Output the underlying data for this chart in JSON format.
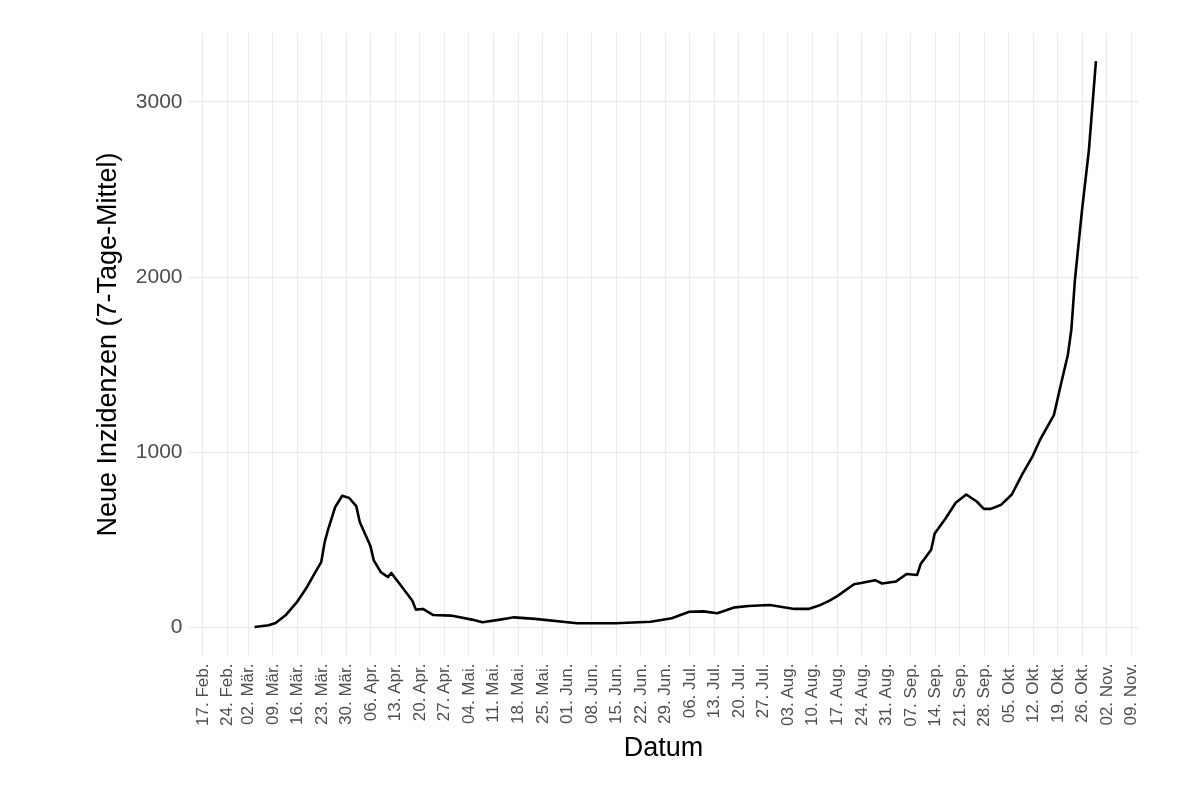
{
  "chart_data": {
    "type": "line",
    "xlabel": "Datum",
    "ylabel": "Neue Inzidenzen (7-Tage-Mittel)",
    "x": [
      "--03-04",
      "--03-08",
      "--03-10",
      "--03-13",
      "--03-16",
      "--03-19",
      "--03-21",
      "--03-23",
      "--03-24",
      "--03-25",
      "--03-27",
      "--03-29",
      "--03-31",
      "--04-02",
      "--04-03",
      "--04-06",
      "--04-07",
      "--04-09",
      "--04-11",
      "--04-12",
      "--04-15",
      "--04-18",
      "--04-19",
      "--04-21",
      "--04-24",
      "--04-29",
      "--05-05",
      "--05-08",
      "--05-13",
      "--05-17",
      "--05-23",
      "--06-04",
      "--06-15",
      "--06-25",
      "--07-01",
      "--07-06",
      "--07-10",
      "--07-14",
      "--07-19",
      "--07-23",
      "--07-29",
      "--08-05",
      "--08-09",
      "--08-12",
      "--08-15",
      "--08-17",
      "--08-22",
      "--08-24",
      "--08-28",
      "--08-30",
      "--09-03",
      "--09-06",
      "--09-09",
      "--09-10",
      "--09-13",
      "--09-14",
      "--09-17",
      "--09-20",
      "--09-23",
      "--09-26",
      "--09-28",
      "--09-30",
      "--10-03",
      "--10-06",
      "--10-09",
      "--10-12",
      "--10-14",
      "--10-18",
      "--10-20",
      "--10-22",
      "--10-23",
      "--10-24",
      "--10-26",
      "--10-28",
      "--10-30"
    ],
    "series": [
      {
        "color": "#000000",
        "values": [
          0,
          10,
          23,
          70,
          140,
          230,
          302,
          370,
          485,
          559,
          685,
          749,
          736,
          690,
          599,
          464,
          380,
          313,
          285,
          308,
          230,
          150,
          99,
          103,
          68,
          65,
          42,
          27,
          42,
          55,
          46,
          21,
          21,
          30,
          50,
          87,
          89,
          78,
          112,
          120,
          125,
          103,
          103,
          122,
          150,
          173,
          244,
          251,
          267,
          248,
          260,
          302,
          297,
          359,
          441,
          534,
          616,
          709,
          756,
          716,
          674,
          674,
          698,
          756,
          872,
          977,
          1066,
          1209,
          1384,
          1554,
          1699,
          1979,
          2374,
          2723,
          3230
        ]
      }
    ],
    "xlim": [
      "--02-13",
      "--11-11"
    ],
    "ylim": [
      -160,
      3390
    ],
    "yticks": [
      0,
      1000,
      2000,
      3000
    ],
    "xticks": [
      {
        "value": "--02-17",
        "label": "17. Feb."
      },
      {
        "value": "--02-24",
        "label": "24. Feb."
      },
      {
        "value": "--03-02",
        "label": "02. Mär."
      },
      {
        "value": "--03-09",
        "label": "09. Mär."
      },
      {
        "value": "--03-16",
        "label": "16. Mär."
      },
      {
        "value": "--03-23",
        "label": "23. Mär."
      },
      {
        "value": "--03-30",
        "label": "30. Mär."
      },
      {
        "value": "--04-06",
        "label": "06. Apr."
      },
      {
        "value": "--04-13",
        "label": "13. Apr."
      },
      {
        "value": "--04-20",
        "label": "20. Apr."
      },
      {
        "value": "--04-27",
        "label": "27. Apr."
      },
      {
        "value": "--05-04",
        "label": "04. Mai."
      },
      {
        "value": "--05-11",
        "label": "11. Mai."
      },
      {
        "value": "--05-18",
        "label": "18. Mai."
      },
      {
        "value": "--05-25",
        "label": "25. Mai."
      },
      {
        "value": "--06-01",
        "label": "01. Jun."
      },
      {
        "value": "--06-08",
        "label": "08. Jun."
      },
      {
        "value": "--06-15",
        "label": "15. Jun."
      },
      {
        "value": "--06-22",
        "label": "22. Jun."
      },
      {
        "value": "--06-29",
        "label": "29. Jun."
      },
      {
        "value": "--07-06",
        "label": "06. Jul."
      },
      {
        "value": "--07-13",
        "label": "13. Jul."
      },
      {
        "value": "--07-20",
        "label": "20. Jul."
      },
      {
        "value": "--07-27",
        "label": "27. Jul."
      },
      {
        "value": "--08-03",
        "label": "03. Aug."
      },
      {
        "value": "--08-10",
        "label": "10. Aug."
      },
      {
        "value": "--08-17",
        "label": "17. Aug."
      },
      {
        "value": "--08-24",
        "label": "24. Aug."
      },
      {
        "value": "--08-31",
        "label": "31. Aug."
      },
      {
        "value": "--09-07",
        "label": "07. Sep."
      },
      {
        "value": "--09-14",
        "label": "14. Sep."
      },
      {
        "value": "--09-21",
        "label": "21. Sep."
      },
      {
        "value": "--09-28",
        "label": "28. Sep."
      },
      {
        "value": "--10-05",
        "label": "05. Okt."
      },
      {
        "value": "--10-12",
        "label": "12. Okt."
      },
      {
        "value": "--10-19",
        "label": "19. Okt."
      },
      {
        "value": "--10-26",
        "label": "26. Okt."
      },
      {
        "value": "--11-02",
        "label": "02. Nov."
      },
      {
        "value": "--11-09",
        "label": "09. Nov."
      }
    ],
    "grid": true
  }
}
